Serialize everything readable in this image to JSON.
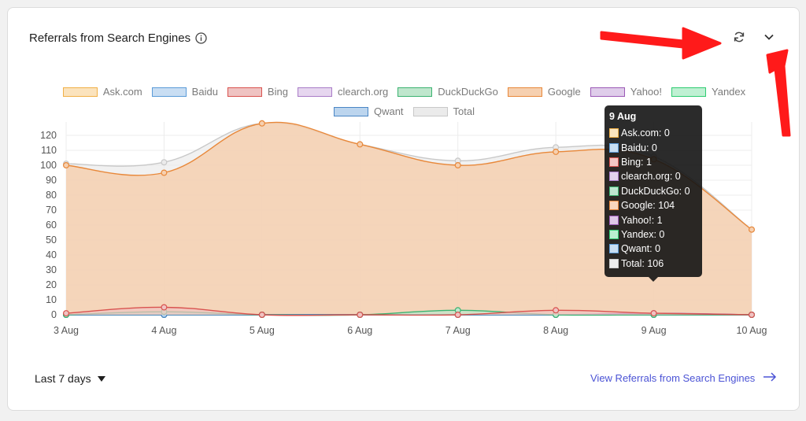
{
  "card": {
    "title": "Referrals from Search Engines"
  },
  "header": {
    "refresh_icon": "refresh-icon",
    "collapse_icon": "chevron-down-icon"
  },
  "footer": {
    "range_label": "Last 7 days",
    "view_link": "View Referrals from Search Engines"
  },
  "tooltip": {
    "title": "9 Aug",
    "rows": [
      {
        "label": "Ask.com: 0",
        "color": "#f1b046"
      },
      {
        "label": "Baidu: 0",
        "color": "#5a9bd8"
      },
      {
        "label": "Bing: 1",
        "color": "#d9534f"
      },
      {
        "label": "clearch.org: 0",
        "color": "#a97cc7"
      },
      {
        "label": "DuckDuckGo: 0",
        "color": "#3cb371"
      },
      {
        "label": "Google: 104",
        "color": "#e8883a"
      },
      {
        "label": "Yahoo!: 1",
        "color": "#9b59b6"
      },
      {
        "label": "Yandex: 0",
        "color": "#2ecc71"
      },
      {
        "label": "Qwant: 0",
        "color": "#5a9bd8"
      },
      {
        "label": "Total: 106",
        "color": "#cccccc"
      }
    ]
  },
  "chart_data": {
    "type": "area",
    "title": "",
    "xlabel": "",
    "ylabel": "",
    "ylim": [
      0,
      130
    ],
    "yticks": [
      0,
      10,
      20,
      30,
      40,
      50,
      60,
      70,
      80,
      90,
      100,
      110,
      120
    ],
    "x": [
      "3 Aug",
      "4 Aug",
      "5 Aug",
      "6 Aug",
      "7 Aug",
      "8 Aug",
      "9 Aug",
      "10 Aug"
    ],
    "legend_position": "top",
    "grid": true,
    "series": [
      {
        "name": "Ask.com",
        "color": "#f1b046",
        "fill": "#fbe3bd",
        "values": [
          0,
          0,
          0,
          0,
          0,
          0,
          0,
          0
        ]
      },
      {
        "name": "Baidu",
        "color": "#5a9bd8",
        "fill": "#c9def3",
        "values": [
          0,
          0,
          0,
          0,
          0,
          0,
          0,
          0
        ]
      },
      {
        "name": "Bing",
        "color": "#d9534f",
        "fill": "#efc3c2",
        "values": [
          1,
          5,
          0,
          0,
          0,
          3,
          1,
          0
        ]
      },
      {
        "name": "clearch.org",
        "color": "#a97cc7",
        "fill": "#e6d6ef",
        "values": [
          0,
          0,
          0,
          0,
          0,
          0,
          0,
          0
        ]
      },
      {
        "name": "DuckDuckGo",
        "color": "#3cb371",
        "fill": "#bfe6cd",
        "values": [
          0,
          2,
          0,
          0,
          3,
          0,
          0,
          0
        ]
      },
      {
        "name": "Google",
        "color": "#e8883a",
        "fill": "#f6d0b0",
        "values": [
          100,
          95,
          128,
          114,
          100,
          109,
          104,
          57
        ]
      },
      {
        "name": "Yahoo!",
        "color": "#9b59b6",
        "fill": "#dfcdea",
        "values": [
          0,
          0,
          0,
          0,
          0,
          0,
          1,
          0
        ]
      },
      {
        "name": "Yandex",
        "color": "#2ecc71",
        "fill": "#bff0d3",
        "values": [
          0,
          0,
          0,
          0,
          0,
          0,
          0,
          0
        ]
      },
      {
        "name": "Qwant",
        "color": "#4a86c5",
        "fill": "#bcd5ee",
        "values": [
          0,
          0,
          0,
          0,
          0,
          0,
          0,
          0
        ]
      },
      {
        "name": "Total",
        "color": "#c8c8c8",
        "fill": "#ebebeb",
        "values": [
          101,
          102,
          128,
          114,
          103,
          112,
          106,
          57
        ]
      }
    ]
  }
}
